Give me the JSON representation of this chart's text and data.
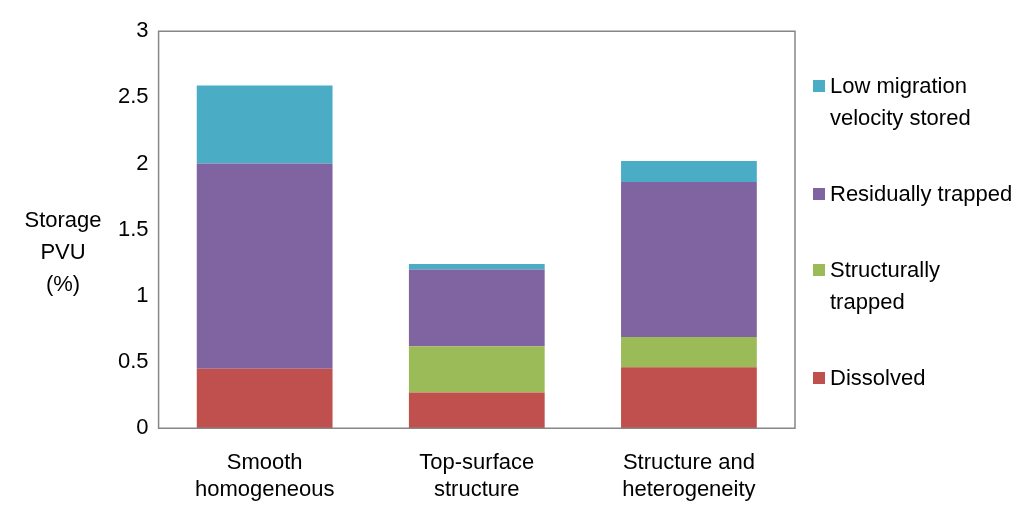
{
  "chart_data": {
    "type": "bar",
    "stacked": true,
    "ylabel": "Storage PVU (%)",
    "categories": [
      "Smooth homogeneous",
      "Top-surface structure",
      "Structure and heterogeneity"
    ],
    "series": [
      {
        "name": "Dissolved",
        "color": "#c0504d",
        "values": [
          0.45,
          0.27,
          0.46
        ]
      },
      {
        "name": "Structurally trapped",
        "color": "#9bbb59",
        "values": [
          0,
          0.35,
          0.23
        ]
      },
      {
        "name": "Residually trapped",
        "color": "#8064a2",
        "values": [
          1.55,
          0.58,
          1.17
        ]
      },
      {
        "name": "Low migration velocity stored",
        "color": "#4bacc6",
        "values": [
          0.59,
          0.04,
          0.16
        ]
      }
    ],
    "ylim": [
      0,
      3
    ],
    "yticks": [
      0,
      0.5,
      1,
      1.5,
      2,
      2.5,
      3
    ],
    "grid": false,
    "legend": "right"
  }
}
